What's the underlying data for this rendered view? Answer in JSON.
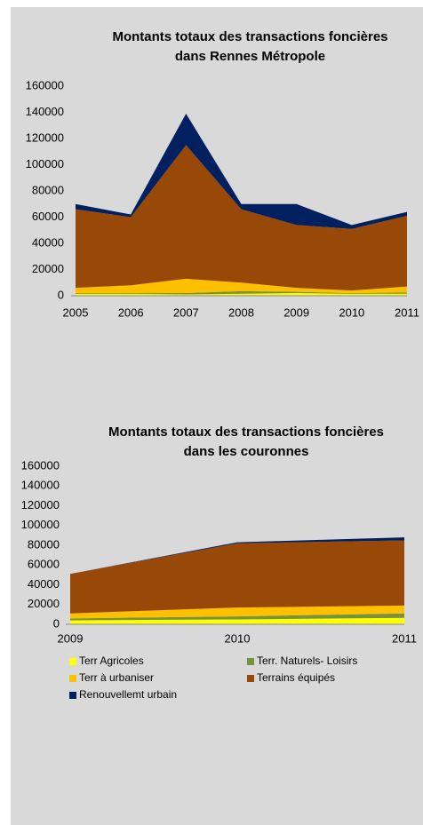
{
  "chart_data": [
    {
      "type": "area",
      "title": "Montants totaux des transactions foncières",
      "subtitle": "dans Rennes Métropole",
      "categories": [
        "2005",
        "2006",
        "2007",
        "2008",
        "2009",
        "2010",
        "2011"
      ],
      "ylim": [
        0,
        160000
      ],
      "yticks": [
        0,
        20000,
        40000,
        60000,
        80000,
        100000,
        120000,
        140000,
        160000
      ],
      "stacked": true,
      "series": [
        {
          "color": "#ffff00",
          "values": [
            1500,
            1500,
            1000,
            1500,
            2000,
            1500,
            1500
          ]
        },
        {
          "color": "#77933c",
          "values": [
            500,
            500,
            1000,
            2000,
            1000,
            500,
            1000
          ]
        },
        {
          "color": "#ffc000",
          "values": [
            4000,
            6000,
            11000,
            6500,
            3000,
            2000,
            4500
          ]
        },
        {
          "color": "#984807",
          "values": [
            60000,
            52000,
            102000,
            56000,
            48000,
            47000,
            54000
          ]
        },
        {
          "color": "#002060",
          "values": [
            4000,
            2000,
            24000,
            4000,
            16000,
            3000,
            3000
          ]
        }
      ]
    },
    {
      "type": "area",
      "title": "Montants totaux des transactions foncières",
      "subtitle": "dans les couronnes",
      "categories": [
        "2009",
        "2010",
        "2011"
      ],
      "ylim": [
        0,
        160000
      ],
      "yticks": [
        0,
        20000,
        40000,
        60000,
        80000,
        100000,
        120000,
        140000,
        160000
      ],
      "stacked": true,
      "legend": "bottom",
      "series": [
        {
          "name": "Terr  Agricoles",
          "color": "#ffff00",
          "values": [
            4000,
            5000,
            6500
          ]
        },
        {
          "name": "Terr. Naturels- Loisirs",
          "color": "#77933c",
          "values": [
            2000,
            3000,
            4500
          ]
        },
        {
          "name": "Terr à urbaniser",
          "color": "#ffc000",
          "values": [
            5000,
            9000,
            8000
          ]
        },
        {
          "name": "Terrains équipés",
          "color": "#984807",
          "values": [
            40000,
            65000,
            66000
          ]
        },
        {
          "name": "Renouvellemt urbain",
          "color": "#002060",
          "values": [
            0,
            1000,
            3000
          ]
        }
      ]
    }
  ]
}
